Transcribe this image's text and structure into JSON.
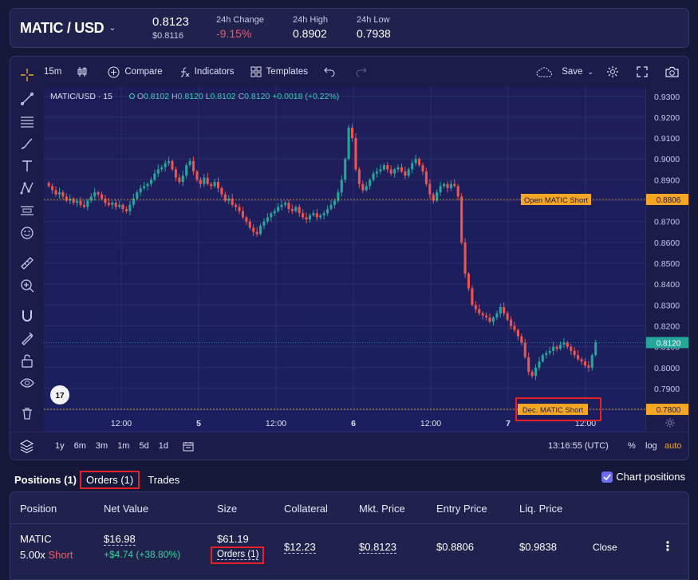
{
  "header": {
    "pair": "MATIC / USD",
    "price": "0.8123",
    "price_sub": "$0.8116",
    "change_label": "24h Change",
    "change_value": "-9.15%",
    "high_label": "24h High",
    "high_value": "0.8902",
    "low_label": "24h Low",
    "low_value": "0.7938"
  },
  "toolbar": {
    "interval": "15m",
    "compare": "Compare",
    "indicators": "Indicators",
    "templates": "Templates",
    "save": "Save"
  },
  "legend": {
    "symbol": "MATIC/USD · 15",
    "o_label": "O",
    "o": "0.8102",
    "h_label": "H",
    "h": "0.8120",
    "l_label": "L",
    "l": "0.8102",
    "c_label": "C",
    "c": "0.8120",
    "change": "+0.0018 (+0.22%)"
  },
  "chart_data": {
    "type": "candlestick",
    "y_ticks": [
      "0.9300",
      "0.9200",
      "0.9100",
      "0.9000",
      "0.8900",
      "0.8800",
      "0.8700",
      "0.8600",
      "0.8500",
      "0.8400",
      "0.8300",
      "0.8200",
      "0.8100",
      "0.8000",
      "0.7900",
      "0.7800"
    ],
    "ylim": [
      0.7785,
      0.9345
    ],
    "x_ticks": [
      "12:00",
      "5",
      "12:00",
      "6",
      "12:00",
      "7",
      "12:00"
    ],
    "closes": [
      0.887,
      0.885,
      0.883,
      0.884,
      0.882,
      0.88,
      0.881,
      0.879,
      0.88,
      0.878,
      0.877,
      0.88,
      0.882,
      0.884,
      0.883,
      0.881,
      0.879,
      0.878,
      0.879,
      0.877,
      0.878,
      0.876,
      0.875,
      0.878,
      0.881,
      0.884,
      0.886,
      0.887,
      0.888,
      0.89,
      0.893,
      0.895,
      0.896,
      0.898,
      0.899,
      0.895,
      0.891,
      0.889,
      0.892,
      0.897,
      0.899,
      0.894,
      0.89,
      0.888,
      0.891,
      0.888,
      0.887,
      0.889,
      0.886,
      0.883,
      0.88,
      0.881,
      0.878,
      0.877,
      0.875,
      0.872,
      0.87,
      0.867,
      0.865,
      0.864,
      0.868,
      0.87,
      0.872,
      0.874,
      0.875,
      0.877,
      0.878,
      0.879,
      0.876,
      0.875,
      0.877,
      0.874,
      0.872,
      0.871,
      0.873,
      0.874,
      0.872,
      0.873,
      0.874,
      0.876,
      0.878,
      0.88,
      0.884,
      0.89,
      0.9,
      0.915,
      0.91,
      0.895,
      0.888,
      0.885,
      0.887,
      0.89,
      0.893,
      0.894,
      0.895,
      0.897,
      0.895,
      0.893,
      0.895,
      0.896,
      0.894,
      0.892,
      0.895,
      0.898,
      0.9,
      0.897,
      0.894,
      0.888,
      0.883,
      0.88,
      0.884,
      0.887,
      0.888,
      0.886,
      0.888,
      0.887,
      0.882,
      0.86,
      0.845,
      0.838,
      0.83,
      0.828,
      0.826,
      0.825,
      0.824,
      0.822,
      0.824,
      0.826,
      0.829,
      0.826,
      0.823,
      0.82,
      0.818,
      0.815,
      0.812,
      0.805,
      0.798,
      0.796,
      0.8,
      0.803,
      0.806,
      0.807,
      0.808,
      0.81,
      0.809,
      0.811,
      0.812,
      0.81,
      0.808,
      0.806,
      0.804,
      0.803,
      0.801,
      0.8,
      0.806,
      0.812
    ],
    "reference_lines": [
      {
        "label": "Open MATIC Short",
        "value": "0.8806"
      },
      {
        "label": "Dec. MATIC Short",
        "value": "0.7800"
      }
    ],
    "last_price": "0.8120"
  },
  "bottombar": {
    "ranges": [
      "1y",
      "6m",
      "3m",
      "1m",
      "5d",
      "1d"
    ],
    "time": "13:16:55 (UTC)",
    "percent": "%",
    "log": "log",
    "auto": "auto"
  },
  "tabs": {
    "positions": "Positions (1)",
    "orders": "Orders (1)",
    "trades": "Trades",
    "chart_positions": "Chart positions"
  },
  "table": {
    "headers": [
      "Position",
      "Net Value",
      "Size",
      "Collateral",
      "Mkt. Price",
      "Entry Price",
      "Liq. Price"
    ],
    "row": {
      "position": "MATIC",
      "leverage": "5.00x",
      "side": "Short",
      "net_value": "$16.98",
      "pnl": "+$4.74 (+38.80%)",
      "size": "$61.19",
      "size_orders": "Orders (1)",
      "collateral": "$12.23",
      "mkt_price": "$0.8123",
      "entry_price": "$0.8806",
      "liq_price": "$0.9838",
      "close": "Close"
    }
  },
  "colors": {
    "up": "#26a69a",
    "down": "#ef5350",
    "accent": "#6d6df2",
    "highlight_box": "#e8202a",
    "order_label": "#f5a623"
  }
}
